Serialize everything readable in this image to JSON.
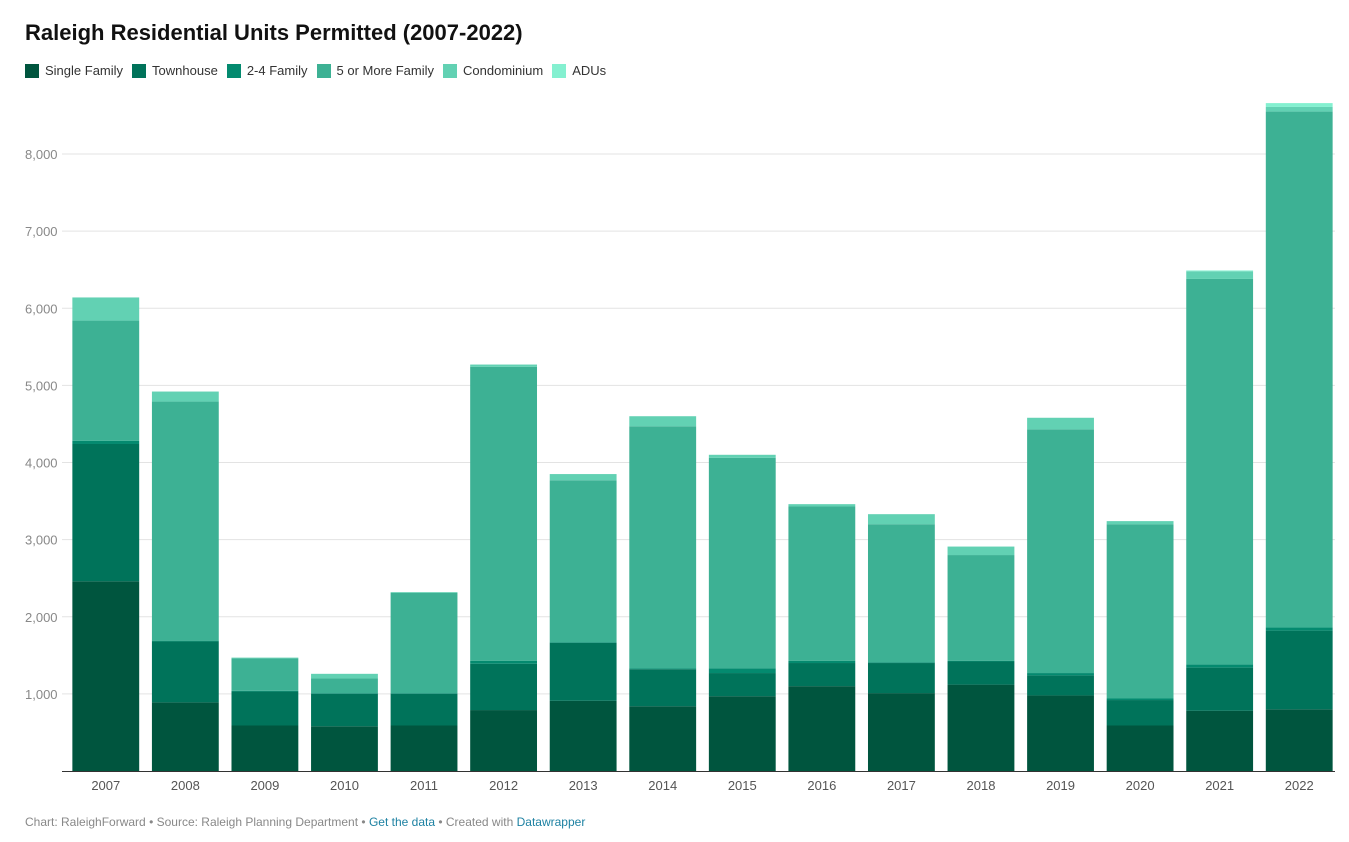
{
  "chart_data": {
    "type": "bar",
    "stacked": true,
    "title": "Raleigh Residential Units Permitted (2007-2022)",
    "xlabel": "",
    "ylabel": "",
    "ylim": [
      0,
      8700
    ],
    "yticks": [
      1000,
      2000,
      3000,
      4000,
      5000,
      6000,
      7000,
      8000
    ],
    "ytick_labels": [
      "1,000",
      "2,000",
      "3,000",
      "4,000",
      "5,000",
      "6,000",
      "7,000",
      "8,000"
    ],
    "grid": true,
    "legend_position": "top-left",
    "categories": [
      "2007",
      "2008",
      "2009",
      "2010",
      "2011",
      "2012",
      "2013",
      "2014",
      "2015",
      "2016",
      "2017",
      "2018",
      "2019",
      "2020",
      "2021",
      "2022"
    ],
    "series": [
      {
        "name": "Single Family",
        "color": "#00553e",
        "values": [
          2460,
          890,
          590,
          580,
          590,
          790,
          910,
          840,
          970,
          1100,
          1010,
          1120,
          980,
          590,
          780,
          800
        ]
      },
      {
        "name": "Townhouse",
        "color": "#00735a",
        "values": [
          1780,
          790,
          440,
          420,
          410,
          600,
          750,
          480,
          300,
          300,
          390,
          300,
          260,
          330,
          560,
          1020
        ]
      },
      {
        "name": "2-4 Family",
        "color": "#048a6f",
        "values": [
          40,
          10,
          10,
          10,
          10,
          40,
          10,
          10,
          60,
          30,
          10,
          10,
          30,
          20,
          40,
          40
        ]
      },
      {
        "name": "5 or More Family",
        "color": "#3db194",
        "values": [
          1560,
          3100,
          420,
          190,
          1300,
          3810,
          2100,
          3140,
          2730,
          2000,
          1790,
          1370,
          3160,
          2260,
          5000,
          6690
        ]
      },
      {
        "name": "Condominium",
        "color": "#62d1b3",
        "values": [
          300,
          130,
          10,
          60,
          10,
          30,
          80,
          130,
          40,
          30,
          130,
          110,
          150,
          40,
          100,
          60
        ]
      },
      {
        "name": "ADUs",
        "color": "#84f0d0",
        "values": [
          0,
          0,
          0,
          0,
          0,
          0,
          0,
          0,
          0,
          0,
          0,
          0,
          0,
          0,
          10,
          50
        ]
      }
    ]
  },
  "footer": {
    "chart_by": "Chart: RaleighForward",
    "source": "Source: Raleigh Planning Department",
    "get_data": "Get the data",
    "created_with": "Created with",
    "tool": "Datawrapper",
    "sep": "•"
  }
}
